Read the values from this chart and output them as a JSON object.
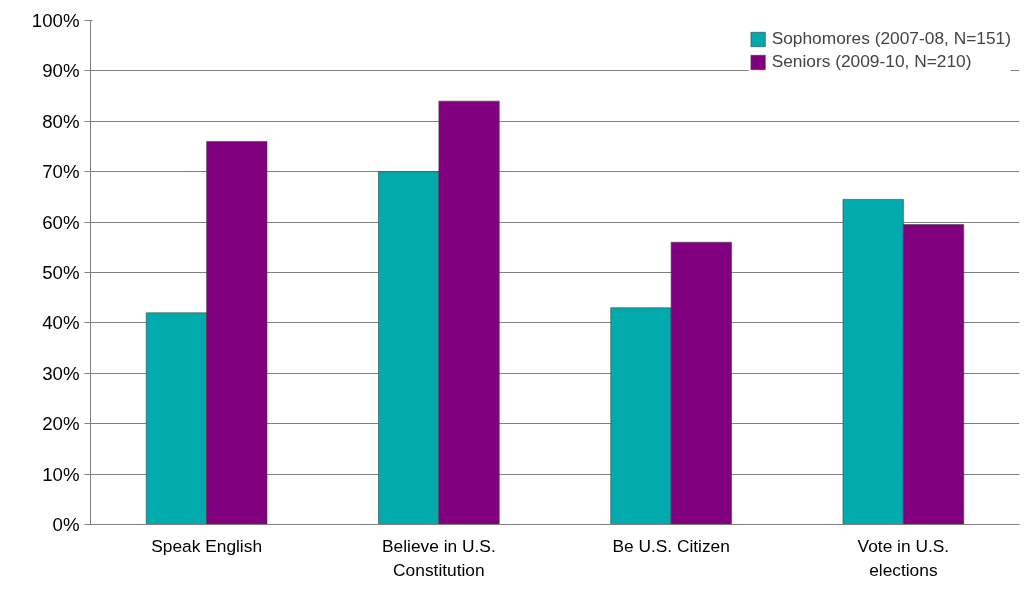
{
  "chart_data": {
    "type": "bar",
    "categories": [
      "Speak English",
      "Believe in U.S. Constitution",
      "Be U.S. Citizen",
      "Vote in U.S. elections"
    ],
    "series": [
      {
        "name": "Sophomores (2007-08, N=151)",
        "color": "#00aaad",
        "values": [
          42,
          70,
          43,
          64.5
        ]
      },
      {
        "name": "Seniors (2009-10, N=210)",
        "color": "#800080",
        "values": [
          76,
          84,
          56,
          59.5
        ]
      }
    ],
    "ylim": [
      0,
      100
    ],
    "yticks": [
      {
        "value": 0,
        "label": "0%"
      },
      {
        "value": 10,
        "label": "10%"
      },
      {
        "value": 20,
        "label": "20%"
      },
      {
        "value": 30,
        "label": "30%"
      },
      {
        "value": 40,
        "label": "40%"
      },
      {
        "value": 50,
        "label": "50%"
      },
      {
        "value": 60,
        "label": "60%"
      },
      {
        "value": 70,
        "label": "70%"
      },
      {
        "value": 80,
        "label": "80%"
      },
      {
        "value": 90,
        "label": "90%"
      },
      {
        "value": 100,
        "label": "100%"
      }
    ],
    "grid": "y",
    "legend": "top right"
  }
}
